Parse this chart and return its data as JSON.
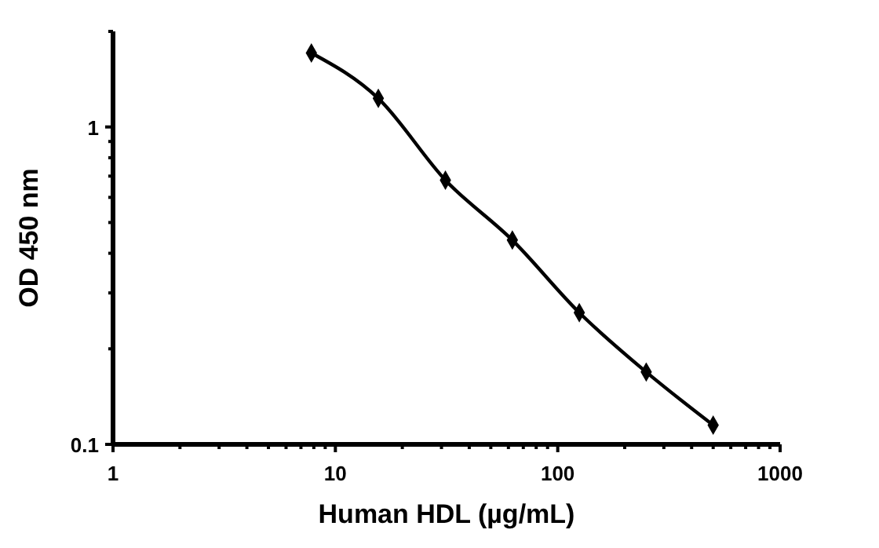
{
  "chart_data": {
    "type": "line",
    "xlabel": "Human HDL (µg/mL)",
    "ylabel": "OD 450 nm",
    "log": "xy",
    "marker": "diamond",
    "line_style": "solid",
    "grid": false,
    "xlim": [
      1,
      1000
    ],
    "ylim": [
      0.1,
      2
    ],
    "xticks": [
      1,
      {
        "value": 2,
        "label": null
      },
      {
        "value": 3,
        "label": null
      },
      {
        "value": 4,
        "label": null
      },
      {
        "value": 5,
        "label": null
      },
      {
        "value": 6,
        "label": null
      },
      {
        "value": 7,
        "label": null
      },
      {
        "value": 8,
        "label": null
      },
      {
        "value": 9,
        "label": null
      },
      10,
      {
        "value": 20,
        "label": null
      },
      {
        "value": 30,
        "label": null
      },
      {
        "value": 40,
        "label": null
      },
      {
        "value": 50,
        "label": null
      },
      {
        "value": 60,
        "label": null
      },
      {
        "value": 70,
        "label": null
      },
      {
        "value": 80,
        "label": null
      },
      {
        "value": 90,
        "label": null
      },
      100,
      {
        "value": 200,
        "label": null
      },
      {
        "value": 300,
        "label": null
      },
      {
        "value": 400,
        "label": null
      },
      {
        "value": 500,
        "label": null
      },
      {
        "value": 600,
        "label": null
      },
      {
        "value": 700,
        "label": null
      },
      {
        "value": 800,
        "label": null
      },
      {
        "value": 900,
        "label": null
      },
      1000
    ],
    "yticks": [
      0.1,
      {
        "value": 0.2,
        "label": null
      },
      {
        "value": 0.3,
        "label": null
      },
      {
        "value": 0.4,
        "label": null
      },
      {
        "value": 0.5,
        "label": null
      },
      {
        "value": 0.6,
        "label": null
      },
      {
        "value": 0.7,
        "label": null
      },
      {
        "value": 0.8,
        "label": null
      },
      {
        "value": 0.9,
        "label": null
      },
      1,
      {
        "value": 2,
        "label": null
      }
    ],
    "x": [
      7.8,
      15.6,
      31.25,
      62.5,
      125,
      250,
      500
    ],
    "series": [
      {
        "color": "#000000",
        "values": [
          1.71,
          1.23,
          0.68,
          0.44,
          0.26,
          0.169,
          0.115
        ]
      }
    ]
  }
}
